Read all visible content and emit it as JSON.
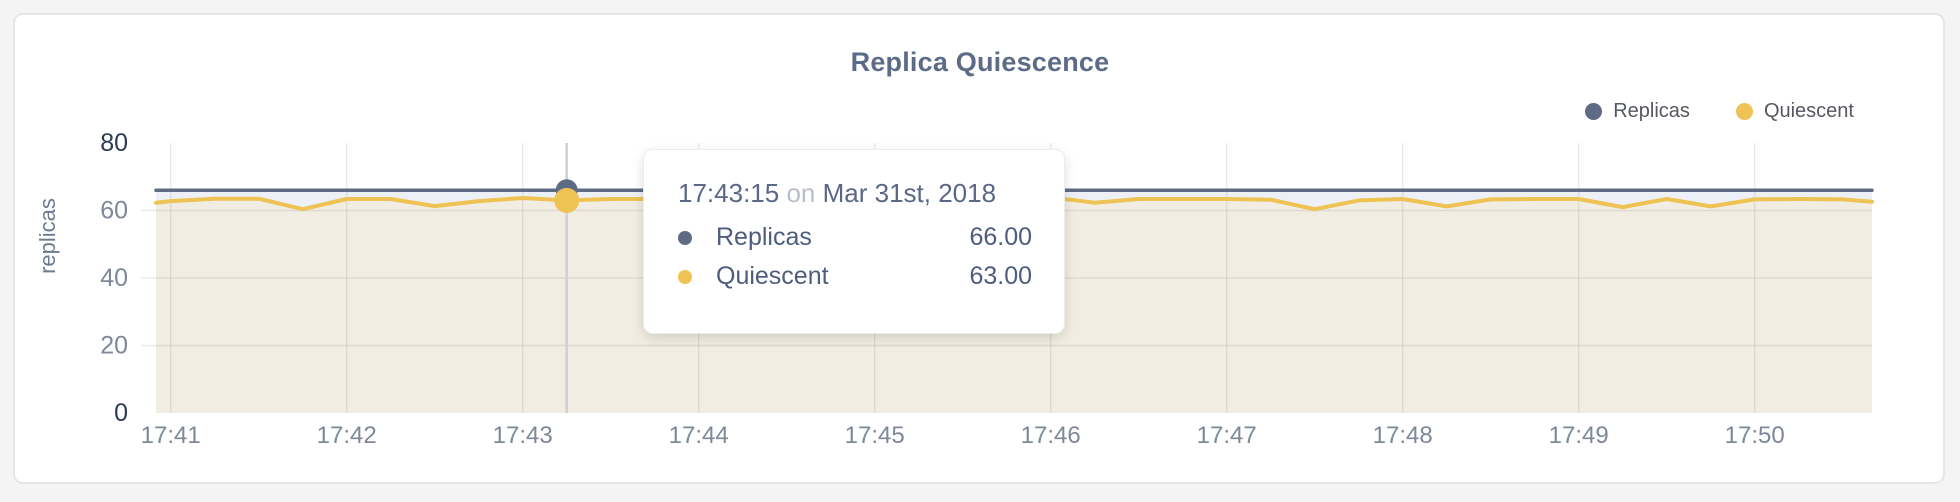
{
  "header": {
    "title": "Replica Quiescence"
  },
  "colors": {
    "replicas": "#5d6b85",
    "quiescent": "#eec253",
    "replicas_fill": "#edf0f7",
    "quiescent_fill": "#f1ede2",
    "tick_dark": "#2d3a55",
    "tick_gray": "#7e8899",
    "axis_title": "#6e7a90",
    "crosshair": "#cfd0d2"
  },
  "legend": {
    "items": [
      {
        "label": "Replicas",
        "color": "#5d6b85"
      },
      {
        "label": "Quiescent",
        "color": "#eec253"
      }
    ]
  },
  "tooltip": {
    "time": "17:43:15",
    "connector": "on",
    "date": "Mar 31st, 2018",
    "rows": [
      {
        "label": "Replicas",
        "value": "66.00",
        "color": "#5d6b85"
      },
      {
        "label": "Quiescent",
        "value": "63.00",
        "color": "#eec253"
      }
    ]
  },
  "chart_data": {
    "type": "line",
    "title": "Replica Quiescence",
    "xlabel": "",
    "ylabel": "replicas",
    "ylim": [
      0,
      80
    ],
    "yticks": [
      0,
      20,
      40,
      60,
      80
    ],
    "xticks": [
      "17:41",
      "17:42",
      "17:43",
      "17:44",
      "17:45",
      "17:46",
      "17:47",
      "17:48",
      "17:49",
      "17:50"
    ],
    "x_domain": [
      "17:40:55",
      "17:50:40"
    ],
    "grid": true,
    "legend_position": "top-right",
    "times": [
      "17:40:55",
      "17:41:00",
      "17:41:15",
      "17:41:30",
      "17:41:45",
      "17:42:00",
      "17:42:15",
      "17:42:30",
      "17:42:45",
      "17:43:00",
      "17:43:15",
      "17:43:30",
      "17:43:45",
      "17:44:00",
      "17:44:15",
      "17:44:30",
      "17:44:45",
      "17:45:00",
      "17:45:15",
      "17:45:30",
      "17:45:45",
      "17:46:00",
      "17:46:15",
      "17:46:30",
      "17:46:45",
      "17:47:00",
      "17:47:15",
      "17:47:30",
      "17:47:45",
      "17:48:00",
      "17:48:15",
      "17:48:30",
      "17:48:45",
      "17:49:00",
      "17:49:15",
      "17:49:30",
      "17:49:45",
      "17:50:00",
      "17:50:15",
      "17:50:30",
      "17:50:40"
    ],
    "series": [
      {
        "name": "Replicas",
        "color": "#5d6b85",
        "fill": "#edf0f7",
        "values": [
          66,
          66,
          66,
          66,
          66,
          66,
          66,
          66,
          66,
          66,
          66,
          66,
          66,
          66,
          66,
          66,
          66,
          66,
          66,
          66,
          66,
          66,
          66,
          66,
          66,
          66,
          66,
          66,
          66,
          66,
          66,
          66,
          66,
          66,
          66,
          66,
          66,
          66,
          66,
          66,
          66
        ]
      },
      {
        "name": "Quiescent",
        "color": "#eec253",
        "fill": "#f1ede2",
        "values": [
          62.3,
          62.8,
          63.5,
          63.5,
          60.4,
          63.4,
          63.4,
          61.3,
          62.8,
          63.7,
          63.0,
          63.4,
          63.4,
          63.3,
          62.2,
          63.1,
          63.4,
          63.4,
          61.9,
          62.8,
          63.3,
          63.9,
          62.3,
          63.4,
          63.4,
          63.4,
          63.2,
          60.4,
          63.0,
          63.4,
          61.2,
          63.3,
          63.4,
          63.4,
          61.0,
          63.4,
          61.2,
          63.3,
          63.4,
          63.3,
          62.6
        ]
      }
    ],
    "highlight": {
      "time": "17:43:15",
      "values": {
        "Replicas": 66,
        "Quiescent": 63
      }
    }
  }
}
